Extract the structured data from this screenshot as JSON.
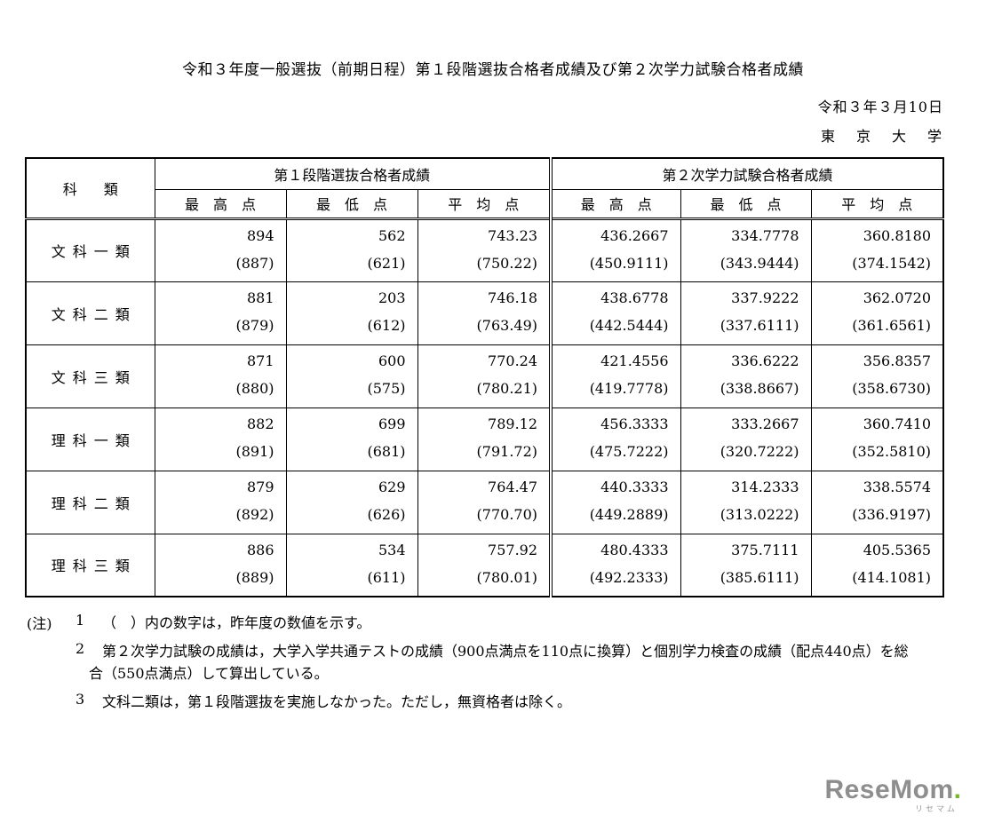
{
  "title": "令和３年度一般選抜（前期日程）第１段階選抜合格者成績及び第２次学力試験合格者成績",
  "date": "令和３年３月10日",
  "institution": "東　京　大　学",
  "table": {
    "corner_header": "科類",
    "groups": [
      {
        "label": "第１段階選抜合格者成績"
      },
      {
        "label": "第２次学力試験合格者成績"
      }
    ],
    "sub_headers": [
      "最高点",
      "最低点",
      "平均点",
      "最高点",
      "最低点",
      "平均点"
    ],
    "rows": [
      {
        "category": "文科一類",
        "current": [
          "894",
          "562",
          "743.23",
          "436.2667",
          "334.7778",
          "360.8180"
        ],
        "previous": [
          "(887)",
          "(621)",
          "(750.22)",
          "(450.9111)",
          "(343.9444)",
          "(374.1542)"
        ]
      },
      {
        "category": "文科二類",
        "current": [
          "881",
          "203",
          "746.18",
          "438.6778",
          "337.9222",
          "362.0720"
        ],
        "previous": [
          "(879)",
          "(612)",
          "(763.49)",
          "(442.5444)",
          "(337.6111)",
          "(361.6561)"
        ]
      },
      {
        "category": "文科三類",
        "current": [
          "871",
          "600",
          "770.24",
          "421.4556",
          "336.6222",
          "356.8357"
        ],
        "previous": [
          "(880)",
          "(575)",
          "(780.21)",
          "(419.7778)",
          "(338.8667)",
          "(358.6730)"
        ]
      },
      {
        "category": "理科一類",
        "current": [
          "882",
          "699",
          "789.12",
          "456.3333",
          "333.2667",
          "360.7410"
        ],
        "previous": [
          "(891)",
          "(681)",
          "(791.72)",
          "(475.7222)",
          "(320.7222)",
          "(352.5810)"
        ]
      },
      {
        "category": "理科二類",
        "current": [
          "879",
          "629",
          "764.47",
          "440.3333",
          "314.2333",
          "338.5574"
        ],
        "previous": [
          "(892)",
          "(626)",
          "(770.70)",
          "(449.2889)",
          "(313.0222)",
          "(336.9197)"
        ]
      },
      {
        "category": "理科三類",
        "current": [
          "886",
          "534",
          "757.92",
          "480.4333",
          "375.7111",
          "405.5365"
        ],
        "previous": [
          "(889)",
          "(611)",
          "(780.01)",
          "(492.2333)",
          "(385.6111)",
          "(414.1081)"
        ]
      }
    ]
  },
  "notes": [
    {
      "mark": "(注)",
      "num": "1",
      "text": "（　）内の数字は，昨年度の数値を示す。"
    },
    {
      "mark": "",
      "num": "2",
      "text": "第２次学力試験の成績は，大学入学共通テストの成績（900点満点を110点に換算）と個別学力検査の成績（配点440点）を総合（550点満点）して算出している。"
    },
    {
      "mark": "",
      "num": "3",
      "text": "文科二類は，第１段階選抜を実施しなかった。ただし，無資格者は除く。"
    }
  ],
  "logo": {
    "text": "ReseMom",
    "dot": ".",
    "sub": "リセマム",
    "text_color": "#8e8e8e",
    "accent_color": "#76b82a"
  }
}
